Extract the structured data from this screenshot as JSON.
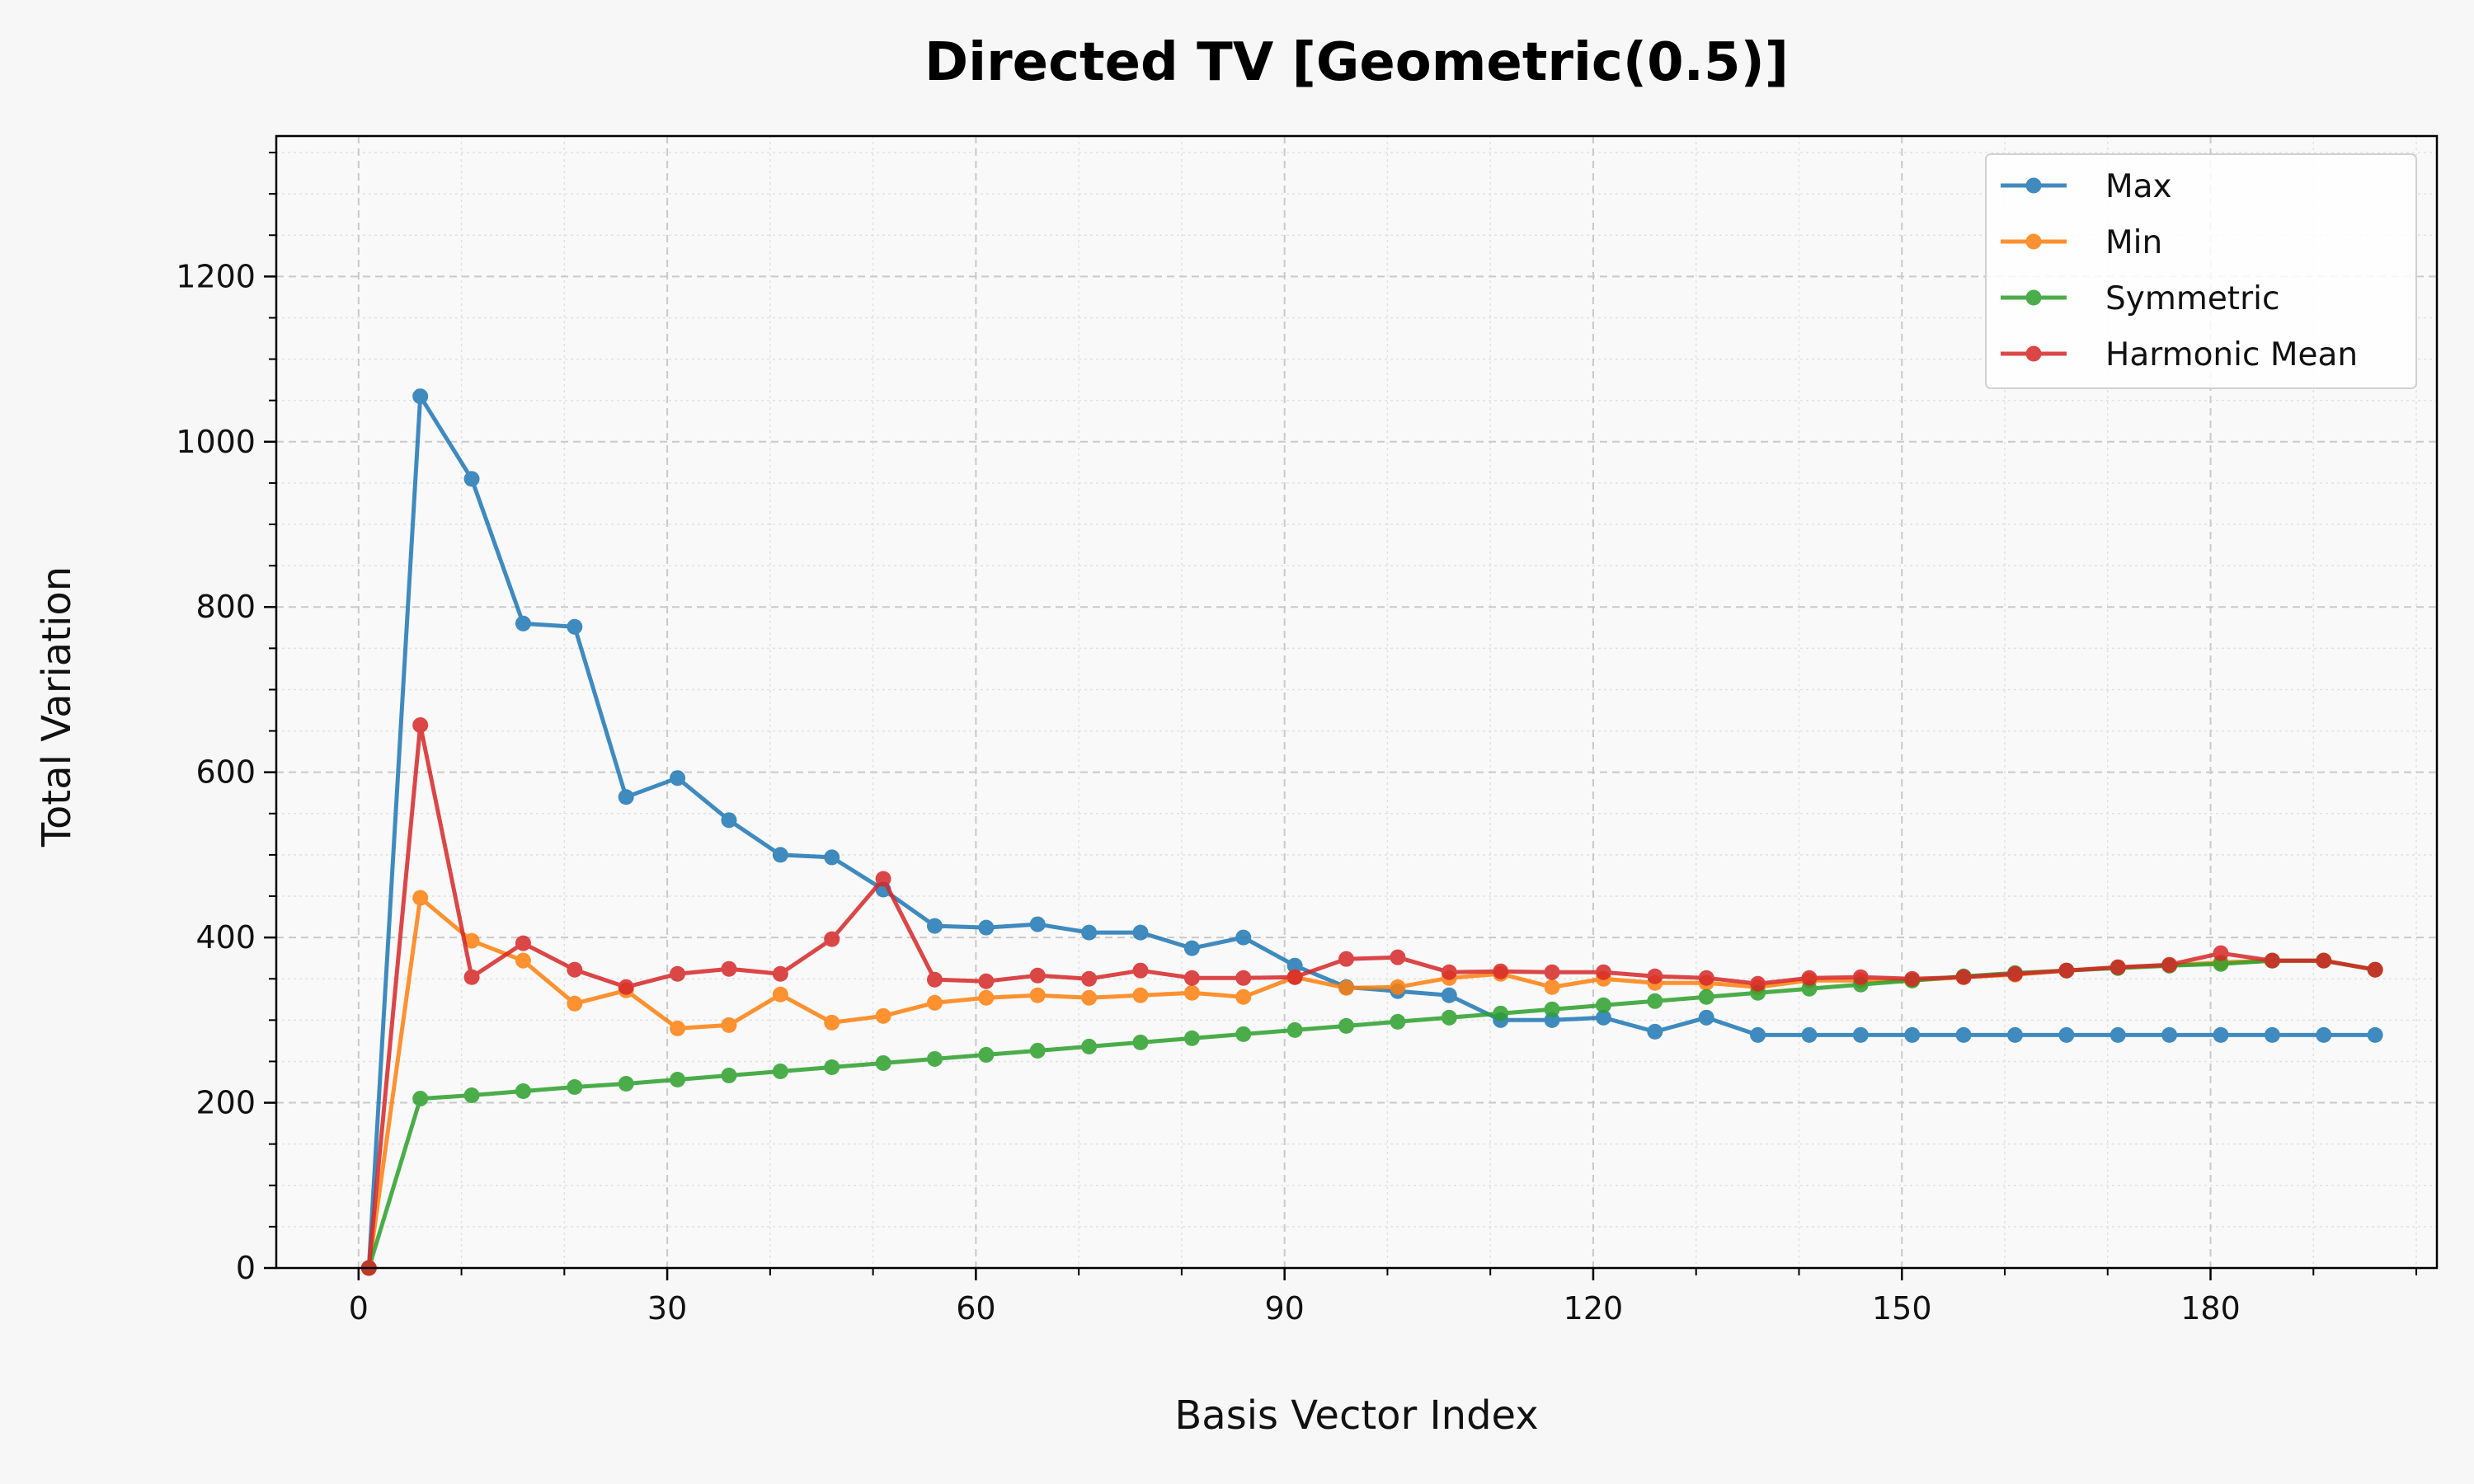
{
  "chart_data": {
    "type": "line",
    "title": "Directed TV [Geometric(0.5)]",
    "xlabel": "Basis Vector Index",
    "ylabel": "Total Variation",
    "xlim": [
      -8,
      202
    ],
    "ylim": [
      0,
      1370
    ],
    "xticks": [
      0,
      30,
      60,
      90,
      120,
      150,
      180
    ],
    "yticks": [
      0,
      200,
      400,
      600,
      800,
      1000,
      1200
    ],
    "grid": true,
    "legend_position": "top-right",
    "x": [
      1,
      6,
      11,
      16,
      21,
      26,
      31,
      36,
      41,
      46,
      51,
      56,
      61,
      66,
      71,
      76,
      81,
      86,
      91,
      96,
      101,
      106,
      111,
      116,
      121,
      126,
      131,
      136,
      141,
      146,
      151,
      156,
      161,
      166,
      171,
      176,
      181,
      186,
      191,
      196
    ],
    "series": [
      {
        "name": "Max",
        "color": "#1f77b4",
        "values": [
          0,
          1055,
          955,
          780,
          776,
          570,
          593,
          542,
          500,
          497,
          458,
          414,
          412,
          416,
          406,
          406,
          387,
          400,
          366,
          340,
          335,
          330,
          300,
          300,
          303,
          286,
          303,
          282,
          282,
          282,
          282,
          282,
          282,
          282,
          282,
          282,
          282,
          282,
          282,
          282
        ]
      },
      {
        "name": "Min",
        "color": "#ff7f0e",
        "values": [
          0,
          448,
          396,
          372,
          320,
          336,
          290,
          294,
          331,
          297,
          305,
          321,
          327,
          330,
          327,
          330,
          333,
          328,
          352,
          339,
          340,
          351,
          356,
          340,
          350,
          345,
          345,
          340,
          348,
          348,
          348,
          352,
          355,
          360,
          364,
          366,
          370,
          372,
          372,
          361
        ]
      },
      {
        "name": "Symmetric",
        "color": "#2ca02c",
        "values": [
          0,
          205,
          209,
          214,
          219,
          223,
          228,
          233,
          238,
          243,
          248,
          253,
          258,
          263,
          268,
          273,
          278,
          283,
          288,
          293,
          298,
          303,
          308,
          313,
          318,
          323,
          328,
          333,
          338,
          343,
          348,
          353,
          357,
          360,
          363,
          366,
          368,
          372,
          372,
          361
        ]
      },
      {
        "name": "Harmonic Mean",
        "color": "#d62728",
        "values": [
          0,
          657,
          352,
          393,
          361,
          340,
          356,
          362,
          356,
          398,
          471,
          349,
          347,
          354,
          350,
          360,
          351,
          351,
          352,
          374,
          376,
          358,
          359,
          358,
          358,
          353,
          351,
          344,
          351,
          352,
          350,
          352,
          356,
          360,
          364,
          367,
          381,
          372,
          372,
          361
        ]
      }
    ]
  }
}
